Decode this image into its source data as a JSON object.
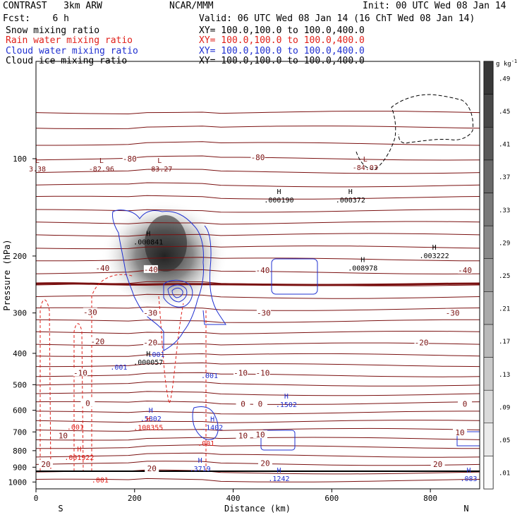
{
  "header": {
    "model": "CONTRAST   3km ARW",
    "org": "NCAR/MMM",
    "init": "Init: 00 UTC Wed 08 Jan 14",
    "fcst": "Fcst:    6 h",
    "valid": "Valid: 06 UTC Wed 08 Jan 14 (16 ChT Wed 08 Jan 14)",
    "fields": [
      {
        "label": "Snow mixing ratio",
        "xy": "XY= 100.0,100.0 to 100.0,400.0",
        "color": "#000000"
      },
      {
        "label": "Rain water mixing ratio",
        "xy": "XY= 100.0,100.0 to 100.0,400.0",
        "color": "#e0201a"
      },
      {
        "label": "Cloud water mixing ratio",
        "xy": "XY= 100.0,100.0 to 100.0,400.0",
        "color": "#2030d0"
      },
      {
        "label": "Cloud ice mixing ratio",
        "xy": "XY= 100.0,100.0 to 100.0,400.0",
        "color": "#000000"
      }
    ]
  },
  "chart_data": {
    "type": "cross-section contour",
    "xlabel": "Distance (km)",
    "ylabel": "Pressure (hPa)",
    "xlim": [
      0,
      900
    ],
    "ylim": [
      1050,
      50
    ],
    "y_log_scale": true,
    "x_ticks": [
      "0",
      "200",
      "400",
      "600",
      "800"
    ],
    "x_tick_values": [
      0,
      200,
      400,
      600,
      800
    ],
    "y_ticks": [
      "100",
      "200",
      "300",
      "400",
      "500",
      "600",
      "700",
      "800",
      "900",
      "1000"
    ],
    "y_tick_values": [
      100,
      200,
      300,
      400,
      500,
      600,
      700,
      800,
      900,
      1000
    ],
    "x_end_labels": {
      "left": "S",
      "right": "N"
    },
    "colorbar": {
      "unit": "g kg",
      "unit_exp": "-1",
      "levels": [
        ".01",
        ".05",
        ".09",
        ".13",
        ".17",
        ".21",
        ".25",
        ".29",
        ".33",
        ".37",
        ".41",
        ".45",
        ".49"
      ],
      "level_values": [
        0.01,
        0.05,
        0.09,
        0.13,
        0.17,
        0.21,
        0.25,
        0.29,
        0.33,
        0.37,
        0.41,
        0.45,
        0.49
      ]
    },
    "temperature_isotherms": {
      "color": "#7a1010",
      "levels": [
        -80,
        -40,
        -30,
        -20,
        -10,
        0,
        10,
        20
      ],
      "labels": [
        {
          "text": "-80",
          "x": 190,
          "p": 100
        },
        {
          "text": "-80",
          "x": 450,
          "p": 99
        },
        {
          "text": "-40",
          "x": 135,
          "p": 218
        },
        {
          "text": "-40",
          "x": 233,
          "p": 220
        },
        {
          "text": "-40",
          "x": 460,
          "p": 221
        },
        {
          "text": "-40",
          "x": 870,
          "p": 221
        },
        {
          "text": "-30",
          "x": 110,
          "p": 298
        },
        {
          "text": "-30",
          "x": 232,
          "p": 300
        },
        {
          "text": "-30",
          "x": 462,
          "p": 300
        },
        {
          "text": "-30",
          "x": 845,
          "p": 300
        },
        {
          "text": "-20",
          "x": 125,
          "p": 367
        },
        {
          "text": "-20",
          "x": 232,
          "p": 370
        },
        {
          "text": "-20",
          "x": 782,
          "p": 370
        },
        {
          "text": "-10",
          "x": 90,
          "p": 459
        },
        {
          "text": "-10",
          "x": 415,
          "p": 459
        },
        {
          "text": "-10",
          "x": 460,
          "p": 459
        },
        {
          "text": "0",
          "x": 105,
          "p": 570
        },
        {
          "text": "0",
          "x": 420,
          "p": 573
        },
        {
          "text": "0",
          "x": 455,
          "p": 573
        },
        {
          "text": "0",
          "x": 870,
          "p": 573
        },
        {
          "text": "10",
          "x": 55,
          "p": 718
        },
        {
          "text": "10",
          "x": 420,
          "p": 718
        },
        {
          "text": "10",
          "x": 455,
          "p": 713
        },
        {
          "text": "10",
          "x": 860,
          "p": 703
        },
        {
          "text": "20",
          "x": 20,
          "p": 880
        },
        {
          "text": "20",
          "x": 235,
          "p": 908
        },
        {
          "text": "20",
          "x": 465,
          "p": 874
        },
        {
          "text": "20",
          "x": 815,
          "p": 880
        }
      ]
    },
    "extrema": [
      {
        "kind": "L",
        "value": "3.38",
        "x": 0,
        "p": 104,
        "color": "#7a1010"
      },
      {
        "kind": "L",
        "value": "-82.96",
        "x": 130,
        "p": 104,
        "color": "#7a1010"
      },
      {
        "kind": "L",
        "value": "-83.27",
        "x": 248,
        "p": 104,
        "color": "#7a1010"
      },
      {
        "kind": "L",
        "value": "-84.03",
        "x": 665,
        "p": 103,
        "color": "#7a1010"
      },
      {
        "kind": "H",
        "value": ".000190",
        "x": 490,
        "p": 130,
        "color": "#000000"
      },
      {
        "kind": "H",
        "value": ".000372",
        "x": 635,
        "p": 130,
        "color": "#000000"
      },
      {
        "kind": "H",
        "value": ".000841",
        "x": 225,
        "p": 175,
        "color": "#000000"
      },
      {
        "kind": "H",
        "value": ".003222",
        "x": 805,
        "p": 193,
        "color": "#000000"
      },
      {
        "kind": "H",
        "value": ".008978",
        "x": 660,
        "p": 211,
        "color": "#000000"
      },
      {
        "kind": "H",
        "value": ".000057",
        "x": 225,
        "p": 412,
        "color": "#000000"
      },
      {
        "kind": "H",
        "value": ".1502",
        "x": 505,
        "p": 557,
        "color": "#2030d0"
      },
      {
        "kind": "H",
        "value": ".5802",
        "x": 230,
        "p": 617,
        "color": "#2030d0"
      },
      {
        "kind": "H",
        "value": ".108355",
        "x": 225,
        "p": 657,
        "color": "#e0201a"
      },
      {
        "kind": "H",
        "value": ".1402",
        "x": 355,
        "p": 657,
        "color": "#2030d0"
      },
      {
        "kind": "H",
        "value": ".001922",
        "x": 85,
        "p": 812,
        "color": "#e0201a"
      },
      {
        "kind": "H",
        "value": ".3719",
        "x": 330,
        "p": 880,
        "color": "#2030d0"
      },
      {
        "kind": "H",
        "value": ".1242",
        "x": 490,
        "p": 945,
        "color": "#2030d0"
      },
      {
        "kind": "H",
        "value": ".083",
        "x": 875,
        "p": 945,
        "color": "#2030d0"
      }
    ],
    "contour_labels": [
      {
        "text": ".001",
        "x": 244,
        "p": 410,
        "color": "#2030d0"
      },
      {
        "text": ".001",
        "x": 168,
        "p": 449,
        "color": "#2030d0"
      },
      {
        "text": ".001",
        "x": 352,
        "p": 477,
        "color": "#2030d0"
      },
      {
        "text": ".001",
        "x": 80,
        "p": 688,
        "color": "#e0201a"
      },
      {
        "text": ".001",
        "x": 345,
        "p": 773,
        "color": "#e0201a"
      },
      {
        "text": ".001",
        "x": 130,
        "p": 1003,
        "color": "#e0201a"
      }
    ]
  }
}
